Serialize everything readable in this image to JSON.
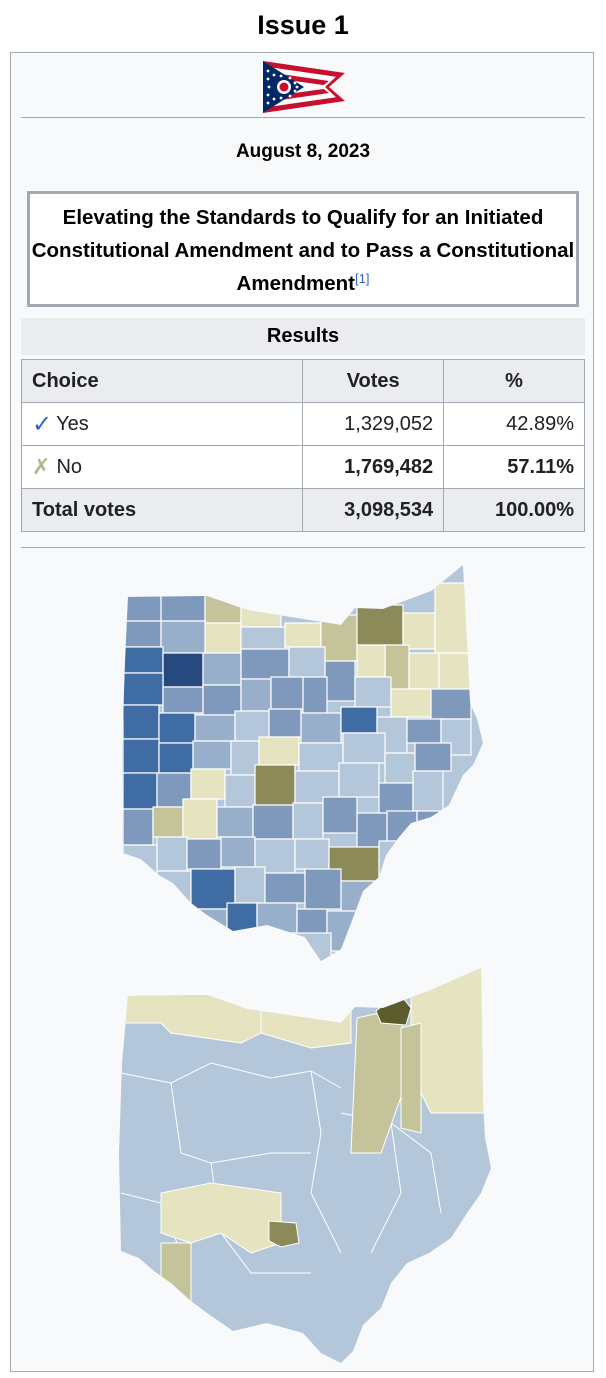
{
  "title": "Issue 1",
  "date": "August 8, 2023",
  "question": {
    "text": "Elevating the Standards to Qualify for an Initiated Constitutional Amendment and to Pass a Constitutional Amendment",
    "ref": "[1]"
  },
  "results": {
    "heading": "Results",
    "columns": [
      "Choice",
      "Votes",
      "%"
    ],
    "rows": [
      {
        "choice": "Yes",
        "icon": "check-icon",
        "votes": "1,329,052",
        "percent": "42.89%"
      },
      {
        "choice": "No",
        "icon": "cross-icon",
        "votes": "1,769,482",
        "percent": "57.11%"
      }
    ],
    "total": {
      "label": "Total votes",
      "votes": "3,098,534",
      "percent": "100.00%"
    }
  },
  "colors": {
    "yes": "#3366cc",
    "no_mark": "#b5b58a",
    "header_bg": "#eaecf0",
    "border": "#a2a9b1",
    "map_yes_light": "#b4c6d9",
    "map_yes_dark": "#264a80",
    "map_no_light": "#e6e3c0",
    "map_no_dark": "#5c5c2c"
  }
}
